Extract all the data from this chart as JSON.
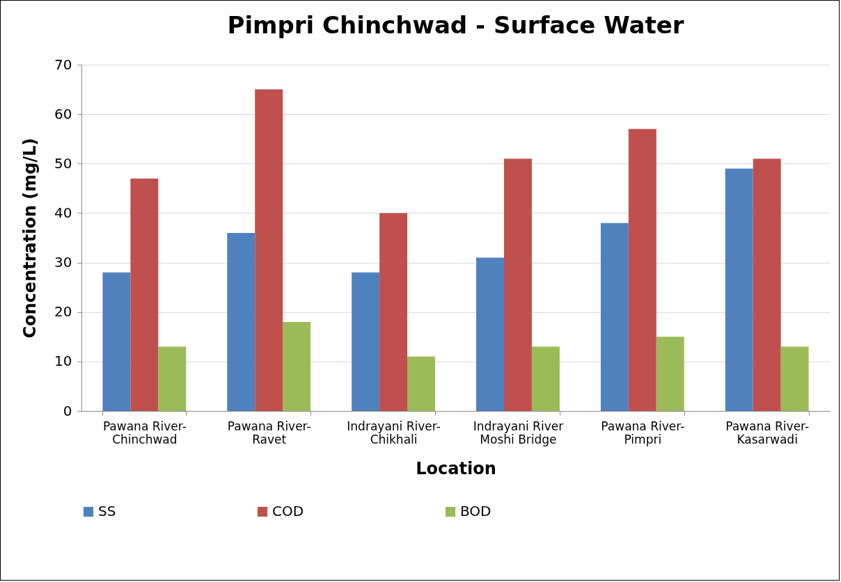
{
  "chart_data": {
    "type": "bar",
    "title": "Pimpri Chinchwad - Surface Water",
    "xlabel": "Location",
    "ylabel": "Concentration (mg/L)",
    "categories": [
      "Pawana River-Chinchwad",
      "Pawana River-Ravet",
      "Indrayani River-Chikhali",
      "Indrayani River Moshi Bridge",
      "Pawana River-Pimpri",
      "Pawana River-Kasarwadi"
    ],
    "series": [
      {
        "name": "SS",
        "color": "#4f81bd",
        "values": [
          28,
          36,
          28,
          31,
          38,
          49
        ]
      },
      {
        "name": "COD",
        "color": "#c0504d",
        "values": [
          47,
          65,
          40,
          51,
          57,
          51
        ]
      },
      {
        "name": "BOD",
        "color": "#9bbb59",
        "values": [
          13,
          18,
          11,
          13,
          15,
          13
        ]
      }
    ],
    "ylim": [
      0,
      70
    ],
    "yticks": [
      0,
      10,
      20,
      30,
      40,
      50,
      60,
      70
    ],
    "grid": "y",
    "legend": "bottom"
  }
}
